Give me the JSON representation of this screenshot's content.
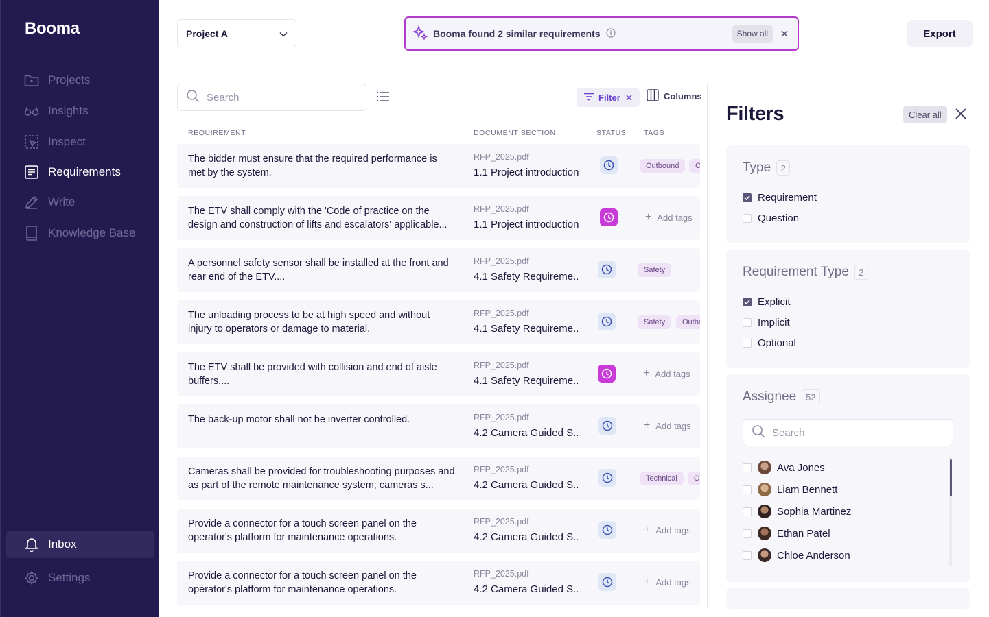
{
  "sidebar": {
    "brand": "Booma",
    "items": [
      {
        "label": "Projects",
        "icon": "folder-icon"
      },
      {
        "label": "Insights",
        "icon": "glasses-icon"
      },
      {
        "label": "Inspect",
        "icon": "inspect-icon"
      },
      {
        "label": "Requirements",
        "icon": "document-list-icon"
      },
      {
        "label": "Write",
        "icon": "pencil-icon"
      },
      {
        "label": "Knowledge Base",
        "icon": "book-icon"
      }
    ],
    "bottom": [
      {
        "label": "Inbox",
        "icon": "bell-icon"
      },
      {
        "label": "Settings",
        "icon": "gear-icon"
      }
    ],
    "active_item": "Requirements"
  },
  "topbar": {
    "project": "Project A",
    "banner_text": "Booma found 2 similar requirements",
    "banner_action": "Show all",
    "export_label": "Export"
  },
  "toolbar": {
    "search_placeholder": "Search",
    "filter_label": "Filter",
    "columns_label": "Columns"
  },
  "table": {
    "headers": [
      "REQUIREMENT",
      "DOCUMENT SECTION",
      "STATUS",
      "TAGS"
    ],
    "rows": [
      {
        "requirement": "The bidder must ensure that the required performance is met by the system.",
        "file": "RFP_2025.pdf",
        "section": "1.1 Project introduction",
        "status": "pending",
        "tags": [
          "Outbound",
          "C"
        ]
      },
      {
        "requirement": "The ETV shall comply with the 'Code of practice on the design and construction of lifts and escalators' applicable...",
        "file": "RFP_2025.pdf",
        "section": "1.1 Project introduction",
        "status": "flagged",
        "tags": [],
        "add_tags": "Add tags"
      },
      {
        "requirement": "A personnel safety sensor shall be installed at the front and rear end of the ETV....",
        "file": "RFP_2025.pdf",
        "section": "4.1 Safety Requireme..",
        "status": "pending",
        "tags": [
          "Safety"
        ]
      },
      {
        "requirement": "The unloading process to be at high speed and without injury to operators or damage to material.",
        "file": "RFP_2025.pdf",
        "section": "4.1 Safety Requireme..",
        "status": "pending",
        "tags": [
          "Safety",
          "Outbo"
        ]
      },
      {
        "requirement": "The ETV shall be provided with collision and end of aisle buffers....",
        "file": "RFP_2025.pdf",
        "section": "4.1 Safety Requireme..",
        "status": "flagged",
        "tags": [],
        "add_tags": "Add tags"
      },
      {
        "requirement": "The back-up motor shall not be inverter controlled.",
        "file": "RFP_2025.pdf",
        "section": "4.2 Camera Guided S..",
        "status": "pending",
        "tags": [],
        "add_tags": "Add tags"
      },
      {
        "requirement": "Cameras shall be provided for troubleshooting purposes and as part of the remote maintenance system; cameras s...",
        "file": "RFP_2025.pdf",
        "section": "4.2 Camera Guided S..",
        "status": "pending",
        "tags": [
          "Technical",
          "Ou"
        ]
      },
      {
        "requirement": "Provide a connector for a touch screen panel on the operator's platform for maintenance operations.",
        "file": "RFP_2025.pdf",
        "section": "4.2 Camera Guided S..",
        "status": "pending",
        "tags": [],
        "add_tags": "Add tags"
      },
      {
        "requirement": "Provide a connector for a touch screen panel on the operator's platform for maintenance operations.",
        "file": "RFP_2025.pdf",
        "section": "4.2 Camera Guided S..",
        "status": "pending",
        "tags": [],
        "add_tags": "Add tags"
      }
    ]
  },
  "filters": {
    "title": "Filters",
    "clear_all": "Clear all",
    "type": {
      "title": "Type",
      "count": "2",
      "options": [
        {
          "label": "Requirement",
          "checked": true
        },
        {
          "label": "Question",
          "checked": false
        }
      ]
    },
    "requirement_type": {
      "title": "Requirement Type",
      "count": "2",
      "options": [
        {
          "label": "Explicit",
          "checked": true
        },
        {
          "label": "Implicit",
          "checked": false
        },
        {
          "label": "Optional",
          "checked": false
        }
      ]
    },
    "assignee": {
      "title": "Assignee",
      "count": "52",
      "search_placeholder": "Search",
      "people": [
        {
          "name": "Ava Jones",
          "checked": false
        },
        {
          "name": "Liam Bennett",
          "checked": false
        },
        {
          "name": "Sophia Martinez",
          "checked": false
        },
        {
          "name": "Ethan Patel",
          "checked": false
        },
        {
          "name": "Chloe Anderson",
          "checked": false
        }
      ]
    }
  },
  "colors": {
    "sidebar_bg": "#231a4f",
    "accent_purple": "#6a3fd0",
    "banner_border": "#b23cc9",
    "flag_badge": "#c93bd9",
    "pending_badge": "#dfe6f5",
    "tag_bg": "#efe2f6"
  }
}
